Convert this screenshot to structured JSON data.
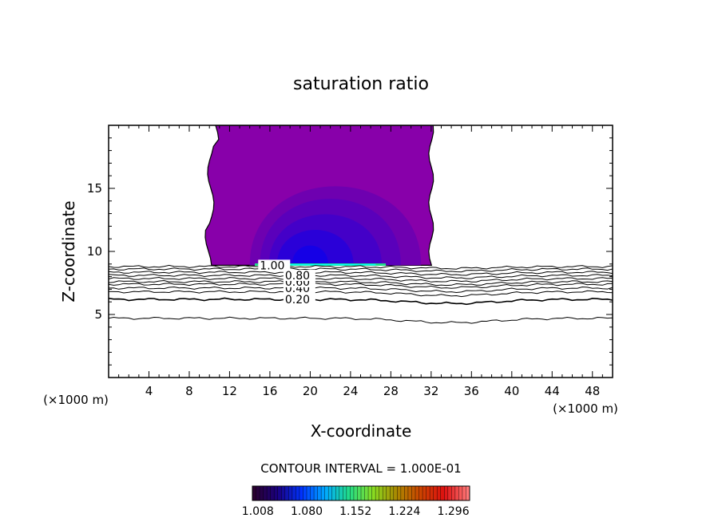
{
  "chart_data": {
    "type": "contour",
    "title": "saturation ratio",
    "xlabel": "X-coordinate",
    "ylabel": "Z-coordinate",
    "x_unit": "(×1000 m)",
    "z_unit": "(×1000 m)",
    "xlim": [
      0,
      50
    ],
    "ylim": [
      0,
      20
    ],
    "x_ticks": [
      4,
      8,
      12,
      16,
      20,
      24,
      28,
      32,
      36,
      40,
      44,
      48
    ],
    "y_ticks": [
      5,
      10,
      15
    ],
    "contour_interval_text": "CONTOUR INTERVAL = 1.000E-01",
    "contour_levels": [
      {
        "label": "0.20",
        "z": 6.2
      },
      {
        "label": "0.40",
        "z": 7.1
      },
      {
        "label": "0.60",
        "z": 7.6
      },
      {
        "label": "0.80",
        "z": 8.1
      },
      {
        "label": "1.00",
        "z": 8.9
      }
    ],
    "contour_baselines": [
      4.7,
      6.2,
      6.8,
      7.1,
      7.4,
      7.6,
      7.85,
      8.1,
      8.35,
      8.6,
      8.8
    ],
    "supersaturated_region": {
      "x": [
        9.5,
        32
      ],
      "z": [
        8.9,
        20
      ]
    },
    "colorbar": {
      "ticks": [
        "1.008",
        "1.080",
        "1.152",
        "1.224",
        "1.296"
      ],
      "range": [
        1.0,
        1.32
      ],
      "colors": [
        "#2a0030",
        "#1a0080",
        "#0033ff",
        "#00aaff",
        "#22dd88",
        "#88dd22",
        "#aa8800",
        "#cc4400",
        "#dd1010",
        "#ff7777"
      ]
    },
    "fill_colors": {
      "outer": "#8800aa",
      "layer1": "#6e00b0",
      "layer2": "#5a00bb",
      "layer3": "#4400c8",
      "layer4": "#2a00d8",
      "core": "#1500e6",
      "band": "#22dd88"
    }
  }
}
